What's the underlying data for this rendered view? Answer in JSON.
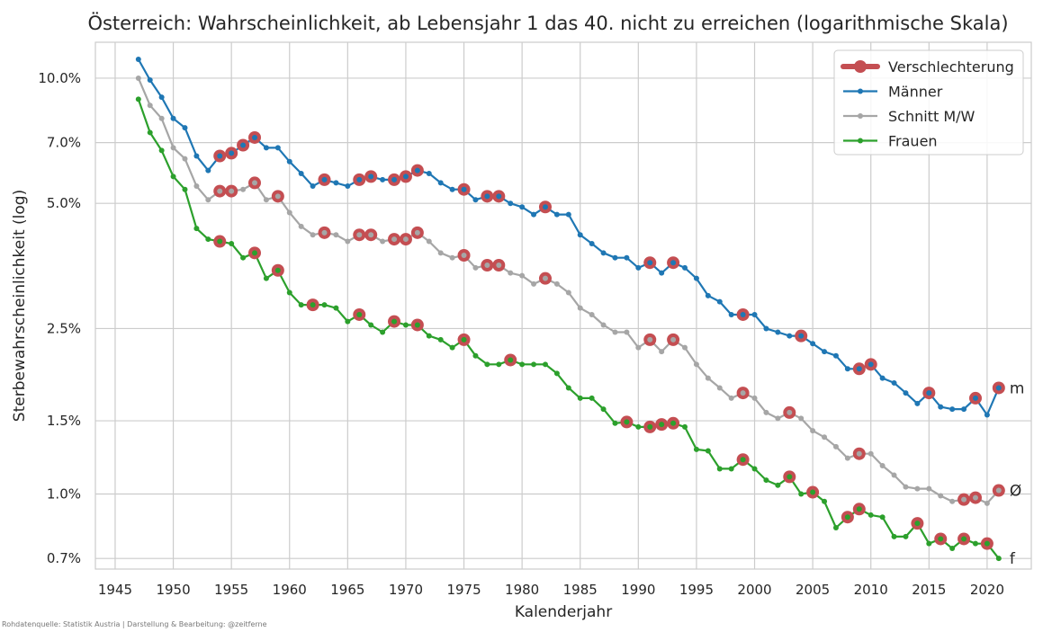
{
  "chart_data": {
    "type": "line",
    "title": "Österreich: Wahrscheinlichkeit, ab Lebensjahr 1 das 40. nicht zu erreichen (logarithmische Skala)",
    "xlabel": "Kalenderjahr",
    "ylabel": "Sterbewahrscheinlichkeit (log)",
    "yscale": "log",
    "xlim": [
      1943.3,
      2023.8
    ],
    "ylim": [
      0.66,
      12.2
    ],
    "xticks": [
      1945,
      1950,
      1955,
      1960,
      1965,
      1970,
      1975,
      1980,
      1985,
      1990,
      1995,
      2000,
      2005,
      2010,
      2015,
      2020
    ],
    "yticks": [
      {
        "value": 0.7,
        "label": "0.7%"
      },
      {
        "value": 1.0,
        "label": "1.0%"
      },
      {
        "value": 1.5,
        "label": "1.5%"
      },
      {
        "value": 2.5,
        "label": "2.5%"
      },
      {
        "value": 5.0,
        "label": "5.0%"
      },
      {
        "value": 7.0,
        "label": "7.0%"
      },
      {
        "value": 10.0,
        "label": "10.0%"
      }
    ],
    "grid": true,
    "legend_position": "top-right",
    "legend": [
      "Verschlechterung",
      "Männer",
      "Schnitt M/W",
      "Frauen"
    ],
    "source": "Rohdatenquelle: Statistik Austria | Darstellung & Bearbeitung: @zeitferne",
    "highlight": {
      "name": "Verschlechterung",
      "color": "#c44e52"
    },
    "x": [
      1947,
      1948,
      1949,
      1950,
      1951,
      1952,
      1953,
      1954,
      1955,
      1956,
      1957,
      1958,
      1959,
      1960,
      1961,
      1962,
      1963,
      1964,
      1965,
      1966,
      1967,
      1968,
      1969,
      1970,
      1971,
      1972,
      1973,
      1974,
      1975,
      1976,
      1977,
      1978,
      1979,
      1980,
      1981,
      1982,
      1983,
      1984,
      1985,
      1986,
      1987,
      1988,
      1989,
      1990,
      1991,
      1992,
      1993,
      1994,
      1995,
      1996,
      1997,
      1998,
      1999,
      2000,
      2001,
      2002,
      2003,
      2004,
      2005,
      2006,
      2007,
      2008,
      2009,
      2010,
      2011,
      2012,
      2013,
      2014,
      2015,
      2016,
      2017,
      2018,
      2019,
      2020,
      2021
    ],
    "series": [
      {
        "name": "Männer",
        "color": "#1f77b4",
        "end_label": "m",
        "values": [
          11.1,
          9.9,
          9.0,
          8.0,
          7.6,
          6.5,
          6.0,
          6.5,
          6.6,
          6.9,
          7.2,
          6.8,
          6.8,
          6.3,
          5.9,
          5.5,
          5.7,
          5.6,
          5.5,
          5.7,
          5.8,
          5.7,
          5.7,
          5.8,
          6.0,
          5.9,
          5.6,
          5.4,
          5.4,
          5.1,
          5.2,
          5.2,
          5.0,
          4.9,
          4.7,
          4.9,
          4.7,
          4.7,
          4.2,
          4.0,
          3.8,
          3.7,
          3.7,
          3.5,
          3.6,
          3.4,
          3.6,
          3.5,
          3.3,
          3.0,
          2.9,
          2.7,
          2.7,
          2.7,
          2.5,
          2.45,
          2.4,
          2.4,
          2.3,
          2.2,
          2.15,
          2.0,
          2.0,
          2.05,
          1.9,
          1.85,
          1.75,
          1.65,
          1.75,
          1.62,
          1.6,
          1.6,
          1.7,
          1.55,
          1.8
        ],
        "worse": [
          1954,
          1955,
          1956,
          1957,
          1963,
          1966,
          1967,
          1969,
          1970,
          1971,
          1975,
          1977,
          1978,
          1982,
          1991,
          1993,
          1999,
          2004,
          2009,
          2010,
          2015,
          2019,
          2021
        ]
      },
      {
        "name": "Schnitt M/W",
        "color": "#a6a6a6",
        "end_label": "Ø",
        "values": [
          10.0,
          8.6,
          8.0,
          6.8,
          6.4,
          5.5,
          5.1,
          5.35,
          5.35,
          5.4,
          5.6,
          5.1,
          5.2,
          4.75,
          4.4,
          4.2,
          4.25,
          4.2,
          4.05,
          4.2,
          4.2,
          4.05,
          4.1,
          4.1,
          4.25,
          4.05,
          3.8,
          3.7,
          3.75,
          3.5,
          3.55,
          3.55,
          3.4,
          3.35,
          3.2,
          3.3,
          3.2,
          3.05,
          2.8,
          2.7,
          2.55,
          2.45,
          2.45,
          2.25,
          2.35,
          2.2,
          2.35,
          2.25,
          2.05,
          1.9,
          1.8,
          1.7,
          1.75,
          1.7,
          1.57,
          1.52,
          1.57,
          1.52,
          1.42,
          1.37,
          1.3,
          1.22,
          1.25,
          1.25,
          1.17,
          1.11,
          1.04,
          1.03,
          1.03,
          0.99,
          0.96,
          0.97,
          0.98,
          0.95,
          1.02
        ],
        "worse": [
          1954,
          1955,
          1957,
          1959,
          1963,
          1966,
          1967,
          1969,
          1970,
          1971,
          1975,
          1977,
          1978,
          1982,
          1991,
          1993,
          1999,
          2003,
          2009,
          2018,
          2019,
          2021
        ]
      },
      {
        "name": "Frauen",
        "color": "#2ca02c",
        "end_label": "f",
        "values": [
          8.9,
          7.4,
          6.7,
          5.8,
          5.4,
          4.35,
          4.1,
          4.05,
          4.0,
          3.7,
          3.8,
          3.3,
          3.45,
          3.05,
          2.85,
          2.85,
          2.85,
          2.8,
          2.6,
          2.7,
          2.55,
          2.45,
          2.6,
          2.55,
          2.55,
          2.4,
          2.35,
          2.25,
          2.35,
          2.15,
          2.05,
          2.05,
          2.1,
          2.05,
          2.05,
          2.05,
          1.95,
          1.8,
          1.7,
          1.7,
          1.6,
          1.48,
          1.49,
          1.45,
          1.45,
          1.47,
          1.48,
          1.45,
          1.28,
          1.27,
          1.15,
          1.15,
          1.21,
          1.15,
          1.08,
          1.05,
          1.1,
          1.0,
          1.01,
          0.96,
          0.83,
          0.88,
          0.92,
          0.89,
          0.88,
          0.79,
          0.79,
          0.85,
          0.76,
          0.78,
          0.74,
          0.78,
          0.76,
          0.76,
          0.7
        ],
        "worse": [
          1954,
          1957,
          1959,
          1962,
          1966,
          1969,
          1971,
          1975,
          1979,
          1989,
          1991,
          1992,
          1993,
          1999,
          2003,
          2005,
          2008,
          2009,
          2014,
          2016,
          2018,
          2020
        ]
      }
    ]
  }
}
